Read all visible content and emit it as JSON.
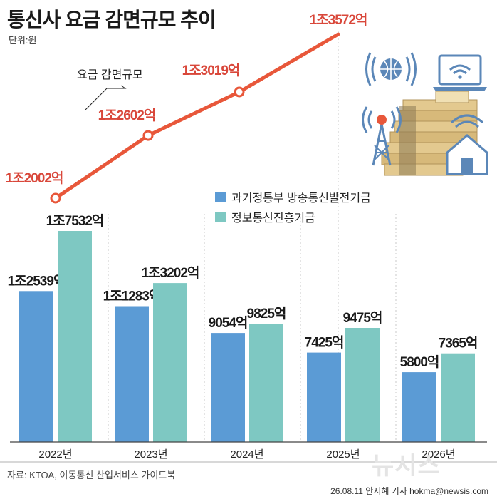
{
  "title": "통신사 요금 감면규모 추이",
  "unit": "단위:원",
  "source": "자료: KTOA, 이동통신 산업서비스 가이드북",
  "credit": "26.08.11 안지혜 기자 hokma@newsis.com",
  "watermark": "뉴시스",
  "colors": {
    "line": "#e8573a",
    "series1": "#5b9bd5",
    "series2": "#7ec8c2",
    "line_label": "#d9473a"
  },
  "icons": [
    "globe-wifi-icon",
    "laptop-wifi-icon",
    "cell-tower-icon",
    "money-stack-icon",
    "house-wifi-icon"
  ],
  "chart_data": [
    {
      "type": "line",
      "series": [
        {
          "name": "요금 감면규모",
          "values": [
            12002,
            12602,
            13019,
            13572
          ],
          "labels": [
            "1조2002억",
            "1조2602억",
            "1조3019억",
            "1조3572억"
          ]
        }
      ],
      "x": [
        "2022년",
        "2023년",
        "2024년",
        "2025년"
      ]
    },
    {
      "type": "bar",
      "categories": [
        "2022년",
        "2023년",
        "2024년",
        "2025년",
        "2026년"
      ],
      "series": [
        {
          "name": "과기정통부 방송통신발전기금",
          "values": [
            12539,
            11283,
            9054,
            7425,
            5800
          ],
          "labels": [
            "1조2539억",
            "1조1283억",
            "9054억",
            "7425억",
            "5800억"
          ]
        },
        {
          "name": "정보통신진흥기금",
          "values": [
            17532,
            13202,
            9825,
            9475,
            7365
          ],
          "labels": [
            "1조7532억",
            "1조3202억",
            "9825억",
            "9475억",
            "7365억"
          ]
        }
      ],
      "ylim": [
        0,
        20000
      ],
      "legend": "top-right"
    }
  ]
}
